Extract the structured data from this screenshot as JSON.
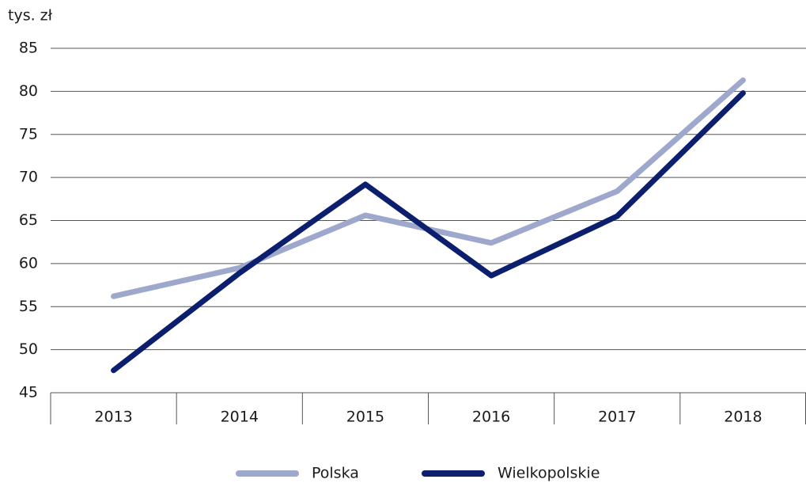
{
  "chart_data": {
    "type": "line",
    "y_label": "tys. zł",
    "categories": [
      "2013",
      "2014",
      "2015",
      "2016",
      "2017",
      "2018"
    ],
    "series": [
      {
        "name": "Polska",
        "color": "#9ea8cc",
        "values": [
          56.2,
          59.5,
          65.6,
          62.4,
          68.4,
          81.3
        ]
      },
      {
        "name": "Wielkopolskie",
        "color": "#0b1f6e",
        "values": [
          47.6,
          58.9,
          69.2,
          58.6,
          65.5,
          79.8
        ]
      }
    ],
    "ylim": [
      45,
      85
    ],
    "yticks": [
      45,
      50,
      55,
      60,
      65,
      70,
      75,
      80,
      85
    ],
    "grid": true,
    "legend": "bottom"
  }
}
